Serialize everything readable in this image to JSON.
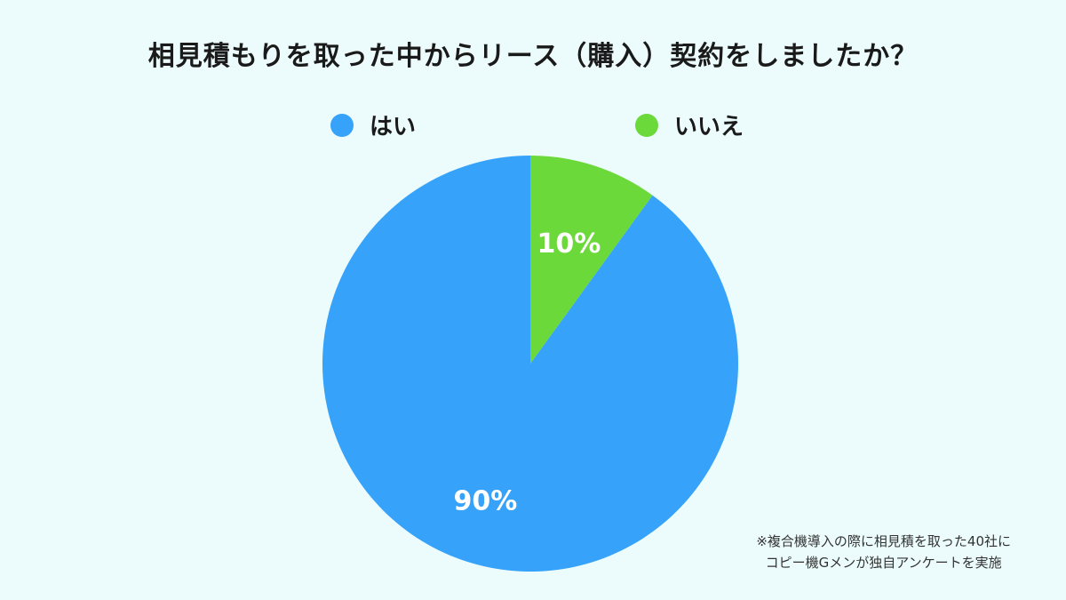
{
  "chart_data": {
    "type": "pie",
    "title": "相見積もりを取った中からリース（購入）契約をしましたか？",
    "categories": [
      "はい",
      "いいえ"
    ],
    "values": [
      90,
      10
    ],
    "value_labels": [
      "90%",
      "10%"
    ],
    "colors": [
      "#36a2fa",
      "#6bd93a"
    ],
    "legend": "top",
    "start_angle": "12 o'clock",
    "direction": "counterclockwise"
  },
  "note": {
    "line1": "※複合機導入の際に相見積を取った40社に",
    "line2": "コピー機Gメンが独自アンケートを実施"
  }
}
